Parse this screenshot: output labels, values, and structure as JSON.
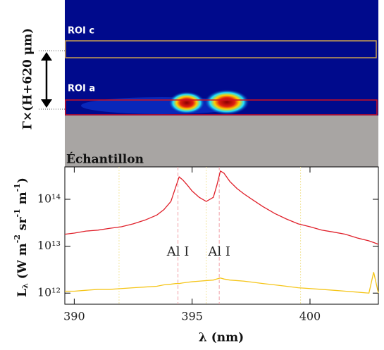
{
  "image_panel": {
    "roi_c": "ROI c",
    "roi_a": "ROI a",
    "height_label": "Γ×(H+620 μm)",
    "sample_label": "Échantillon"
  },
  "chart_data": {
    "type": "line",
    "xlabel": "λ (nm)",
    "ylabel": [
      "L",
      "λ",
      " (W m",
      "-2",
      " sr",
      "-1",
      " m",
      "-1",
      ")"
    ],
    "log_y": true,
    "xlim": [
      389.6,
      402.9
    ],
    "xticks": [
      390,
      395,
      400
    ],
    "ylim": [
      580000000000.0,
      490000000000000.0
    ],
    "yticks": [
      {
        "value": 1000000000000.0,
        "label": "10¹²"
      },
      {
        "value": 10000000000000.0,
        "label": "10¹³"
      },
      {
        "value": 100000000000000.0,
        "label": "10¹⁴"
      }
    ],
    "x": [
      389.6,
      390,
      390.5,
      391,
      391.5,
      392,
      392.5,
      393,
      393.5,
      393.8,
      394.1,
      394.3,
      394.45,
      394.6,
      394.8,
      395,
      395.3,
      395.6,
      395.9,
      396.05,
      396.2,
      396.35,
      396.6,
      396.9,
      397.2,
      397.6,
      398,
      398.5,
      399,
      399.5,
      400,
      400.5,
      401,
      401.5,
      402,
      402.5,
      402.7,
      402.9
    ],
    "series": [
      {
        "color": "#e0202a",
        "values": [
          18000000000000.0,
          19000000000000.0,
          21000000000000.0,
          22000000000000.0,
          24000000000000.0,
          26000000000000.0,
          30000000000000.0,
          36000000000000.0,
          46000000000000.0,
          60000000000000.0,
          90000000000000.0,
          180000000000000.0,
          300000000000000.0,
          260000000000000.0,
          200000000000000.0,
          150000000000000.0,
          110000000000000.0,
          90000000000000.0,
          110000000000000.0,
          200000000000000.0,
          400000000000000.0,
          360000000000000.0,
          240000000000000.0,
          170000000000000.0,
          130000000000000.0,
          95000000000000.0,
          70000000000000.0,
          50000000000000.0,
          38000000000000.0,
          30000000000000.0,
          26000000000000.0,
          22000000000000.0,
          20000000000000.0,
          18000000000000.0,
          15000000000000.0,
          13000000000000.0,
          12000000000000.0,
          11000000000000.0
        ]
      },
      {
        "color": "#f5c518",
        "values": [
          1100000000000.0,
          1100000000000.0,
          1150000000000.0,
          1200000000000.0,
          1200000000000.0,
          1250000000000.0,
          1300000000000.0,
          1350000000000.0,
          1400000000000.0,
          1500000000000.0,
          1550000000000.0,
          1600000000000.0,
          1600000000000.0,
          1650000000000.0,
          1700000000000.0,
          1750000000000.0,
          1800000000000.0,
          1850000000000.0,
          1900000000000.0,
          2000000000000.0,
          2100000000000.0,
          2000000000000.0,
          1900000000000.0,
          1850000000000.0,
          1800000000000.0,
          1700000000000.0,
          1600000000000.0,
          1500000000000.0,
          1400000000000.0,
          1300000000000.0,
          1250000000000.0,
          1200000000000.0,
          1150000000000.0,
          1100000000000.0,
          1050000000000.0,
          1000000000000.0,
          2800000000000.0,
          1000000000000.0
        ]
      }
    ],
    "line_markers": {
      "positions": [
        394.4,
        396.15
      ],
      "color": "#f0a0a8",
      "labels": [
        "Al I",
        "Al I"
      ]
    },
    "faint_markers": {
      "positions": [
        391.9,
        395.6,
        399.6
      ],
      "color": "#f3e6a0"
    }
  }
}
